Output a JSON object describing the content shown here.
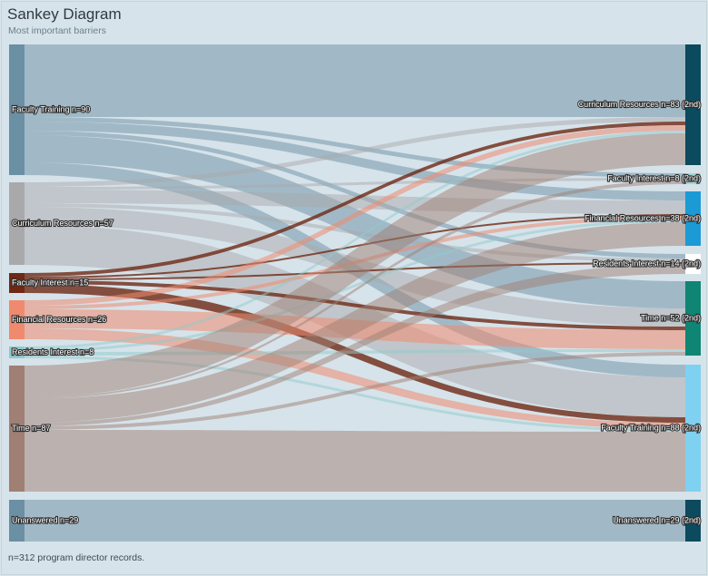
{
  "header": {
    "title": "Sankey Diagram",
    "subtitle": "Most important barriers"
  },
  "footer": {
    "note": "n=312 program director records."
  },
  "diagram": {
    "colors": {
      "left": {
        "faculty_training": "#6b8fa3",
        "curriculum": "#a9a9ab",
        "faculty_interest": "#6e2814",
        "financial": "#f08a6e",
        "residents_interest": "#8ecbcc",
        "time": "#a07f74",
        "unanswered": "#6b8fa3"
      },
      "right": {
        "curriculum": "#0c4a5e",
        "faculty_interest": "#9fd9d6",
        "financial": "#1b9ad6",
        "residents_interest": "#ffffff",
        "time": "#0f8574",
        "faculty_training": "#7fd1f2",
        "unanswered": "#0c4a5e"
      }
    },
    "left_nodes": [
      {
        "id": "faculty_training",
        "label": "Faculty Training n=90"
      },
      {
        "id": "curriculum",
        "label": "Curriculum Resources n=57"
      },
      {
        "id": "faculty_interest",
        "label": "Faculty Interest n=15"
      },
      {
        "id": "financial",
        "label": "Financial Resources n=26"
      },
      {
        "id": "residents_interest",
        "label": "Residents Interest n=8"
      },
      {
        "id": "time",
        "label": "Time n=87"
      },
      {
        "id": "unanswered",
        "label": "Unanswered n=29"
      }
    ],
    "right_nodes": [
      {
        "id": "curriculum",
        "label": "Curriculum Resources n=83 (2nd)"
      },
      {
        "id": "faculty_interest",
        "label": "Faculty Interest n=8 (2nd)"
      },
      {
        "id": "financial",
        "label": "Financial Resources n=38 (2nd)"
      },
      {
        "id": "residents_interest",
        "label": "Residents Interest n=14 (2nd)"
      },
      {
        "id": "time",
        "label": "Time n=52 (2nd)"
      },
      {
        "id": "faculty_training",
        "label": "Faculty Training n=88 (2nd)"
      },
      {
        "id": "unanswered",
        "label": "Unanswered n=29 (2nd)"
      }
    ]
  }
}
